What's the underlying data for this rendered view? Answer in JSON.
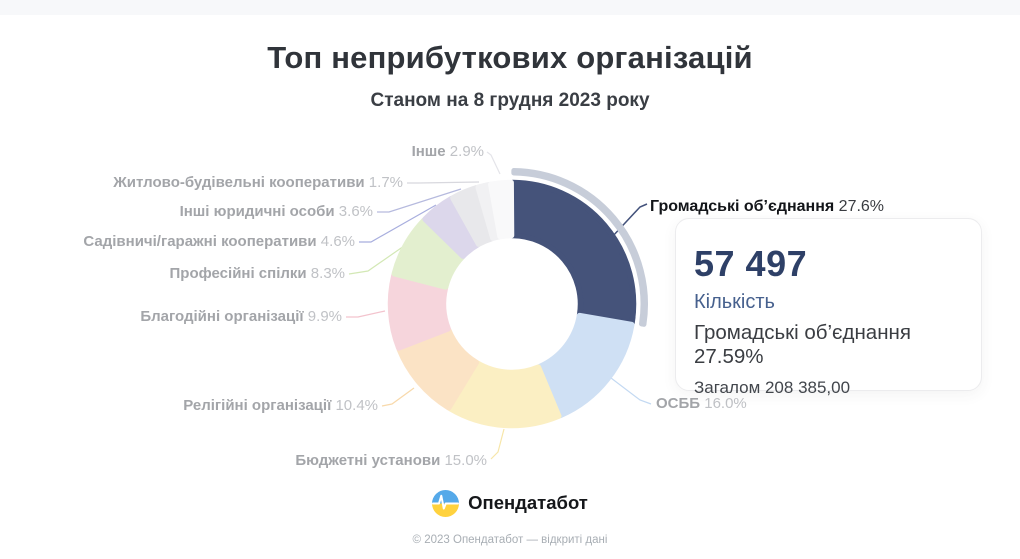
{
  "page": {
    "title": "Топ неприбуткових організацій",
    "subtitle": "Станом на 8 грудня 2023 року"
  },
  "chart_data": {
    "type": "pie",
    "subtype": "donut",
    "title": "Топ неприбуткових організацій",
    "subtitle": "Станом на 8 грудня 2023 року",
    "unit": "%",
    "total_value": "208 385,00",
    "selected_index": 0,
    "series": [
      {
        "name": "Громадські об’єднання",
        "pct": 27.6,
        "count": "57 497",
        "color": "#45537a",
        "line_color": "#43527b",
        "selected": true
      },
      {
        "name": "ОСББ",
        "pct": 16.0,
        "color": "#cfe0f4",
        "line_color": "#c3d9f2",
        "selected": false
      },
      {
        "name": "Бюджетні установи",
        "pct": 15.0,
        "color": "#fbefc3",
        "line_color": "#f7e6a8",
        "selected": false
      },
      {
        "name": "Релігійні організації",
        "pct": 10.4,
        "color": "#fbe3c5",
        "line_color": "#f8d9ab",
        "selected": false
      },
      {
        "name": "Благодійні організації",
        "pct": 9.9,
        "color": "#f6d5dc",
        "line_color": "#f3c3cd",
        "selected": false
      },
      {
        "name": "Професійні спілки",
        "pct": 8.3,
        "color": "#e3efcf",
        "line_color": "#d3e8b5",
        "selected": false
      },
      {
        "name": "Садівничі/гаражні кооперативи",
        "pct": 4.6,
        "color": "#dcd7eb",
        "line_color": "#a8aede",
        "selected": false
      },
      {
        "name": "Інші юридичні особи",
        "pct": 3.6,
        "color": "#e8e8eb",
        "line_color": "#b6bade",
        "selected": false
      },
      {
        "name": "Житлово-будівельні кооперативи",
        "pct": 1.7,
        "color": "#f1f1f3",
        "line_color": "#d8d8de",
        "selected": false
      },
      {
        "name": "Інше",
        "pct": 2.9,
        "color": "#f9f9fa",
        "line_color": "#e4e4e9",
        "selected": false
      }
    ],
    "highlight_arc_color": "#c7cdd9"
  },
  "tooltip": {
    "value": "57 497",
    "value_label": "Кількість",
    "item_text": "Громадські об’єднання 27.59%",
    "total_text": "Загалом 208 385,00"
  },
  "footer": {
    "brand": "Опендатабот",
    "copyright": "© 2023 Опендатабот — відкриті дані",
    "logo_blue": "#55a9e9",
    "logo_yellow": "#ffd23e"
  }
}
